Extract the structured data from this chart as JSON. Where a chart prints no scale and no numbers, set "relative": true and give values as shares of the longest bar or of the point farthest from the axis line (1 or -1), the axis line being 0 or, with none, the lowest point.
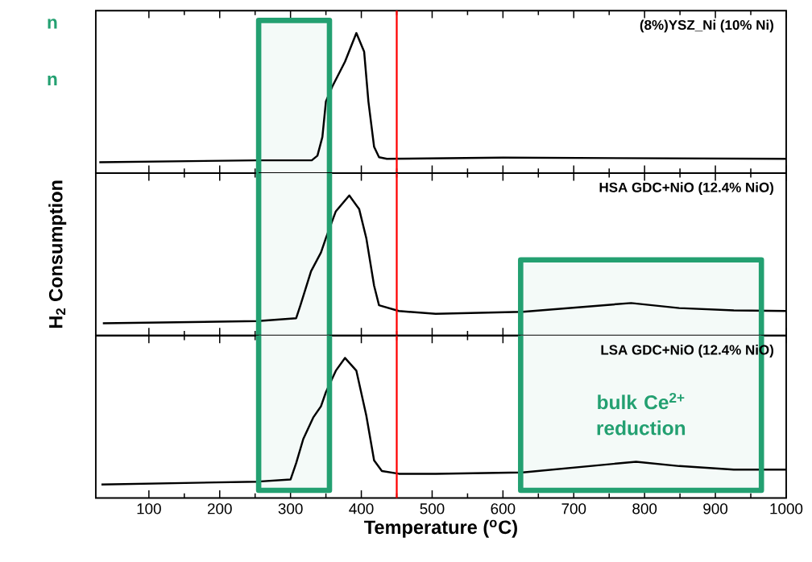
{
  "chart_data": [
    {
      "type": "line",
      "relative": true,
      "title": "(8%)YSZ_Ni (10% Ni)",
      "xlim": [
        25,
        1000
      ],
      "xticks": [
        100,
        200,
        300,
        400,
        500,
        600,
        700,
        800,
        900,
        1000
      ],
      "tick_labels": false,
      "annotations": [
        "n",
        "n"
      ],
      "ref_lines": [
        {
          "axis": "x",
          "value": 450,
          "color": "#ff0000"
        }
      ],
      "bands": [
        {
          "axis": "x",
          "from": 255,
          "to": 355
        }
      ],
      "series": [
        {
          "color": "#000000",
          "x": [
            30,
            254,
            330,
            338,
            345,
            350,
            359,
            377,
            393,
            404,
            410,
            418,
            425,
            436,
            600,
            1000
          ],
          "values": [
            0.078,
            0.091,
            0.091,
            0.124,
            0.258,
            0.511,
            0.618,
            0.796,
            1,
            0.866,
            0.511,
            0.188,
            0.113,
            0.102,
            0.11,
            0.102
          ]
        }
      ]
    },
    {
      "type": "line",
      "relative": true,
      "title": "HSA GDC+NiO (12.4% NiO)",
      "ylabel": "H$_{2}$ Consumption",
      "xlim": [
        25,
        1000
      ],
      "xticks": [
        100,
        200,
        300,
        400,
        500,
        600,
        700,
        800,
        900,
        1000
      ],
      "tick_labels": false,
      "ref_lines": [
        {
          "axis": "x",
          "value": 450,
          "color": "#ff0000"
        }
      ],
      "bands": [
        {
          "axis": "x",
          "from": 255,
          "to": 355
        },
        {
          "axis": "x",
          "from": 625,
          "to": 965
        }
      ],
      "series": [
        {
          "color": "#000000",
          "x": [
            35,
            254,
            308,
            314,
            329,
            343,
            350,
            364,
            383,
            397,
            407,
            418,
            425,
            453,
            505,
            628,
            781,
            849,
            926,
            1000
          ],
          "values": [
            0.088,
            0.103,
            0.124,
            0.216,
            0.459,
            0.593,
            0.696,
            0.887,
            1,
            0.902,
            0.696,
            0.356,
            0.216,
            0.175,
            0.155,
            0.17,
            0.232,
            0.196,
            0.18,
            0.175
          ]
        }
      ]
    },
    {
      "type": "line",
      "relative": true,
      "title": "LSA GDC+NiO (12.4% NiO)",
      "xlabel": "Temperature ($^{o}$C)",
      "xlim": [
        25,
        1000
      ],
      "xticks": [
        100,
        200,
        300,
        400,
        500,
        600,
        700,
        800,
        900,
        1000
      ],
      "tick_labels": "x",
      "annotations": [
        "bulk Ce$^{2+}$ reduction"
      ],
      "ref_lines": [
        {
          "axis": "x",
          "value": 450,
          "color": "#ff0000"
        }
      ],
      "bands": [
        {
          "axis": "x",
          "from": 255,
          "to": 355
        },
        {
          "axis": "x",
          "from": 625,
          "to": 965
        }
      ],
      "series": [
        {
          "color": "#000000",
          "x": [
            33,
            254,
            300,
            308,
            318,
            332,
            343,
            350,
            364,
            377,
            393,
            407,
            418,
            429,
            453,
            505,
            628,
            788,
            849,
            926,
            1000
          ],
          "values": [
            0.096,
            0.117,
            0.132,
            0.249,
            0.421,
            0.574,
            0.655,
            0.756,
            0.909,
            1,
            0.909,
            0.589,
            0.269,
            0.193,
            0.173,
            0.173,
            0.183,
            0.259,
            0.228,
            0.203,
            0.203
          ]
        }
      ]
    }
  ]
}
